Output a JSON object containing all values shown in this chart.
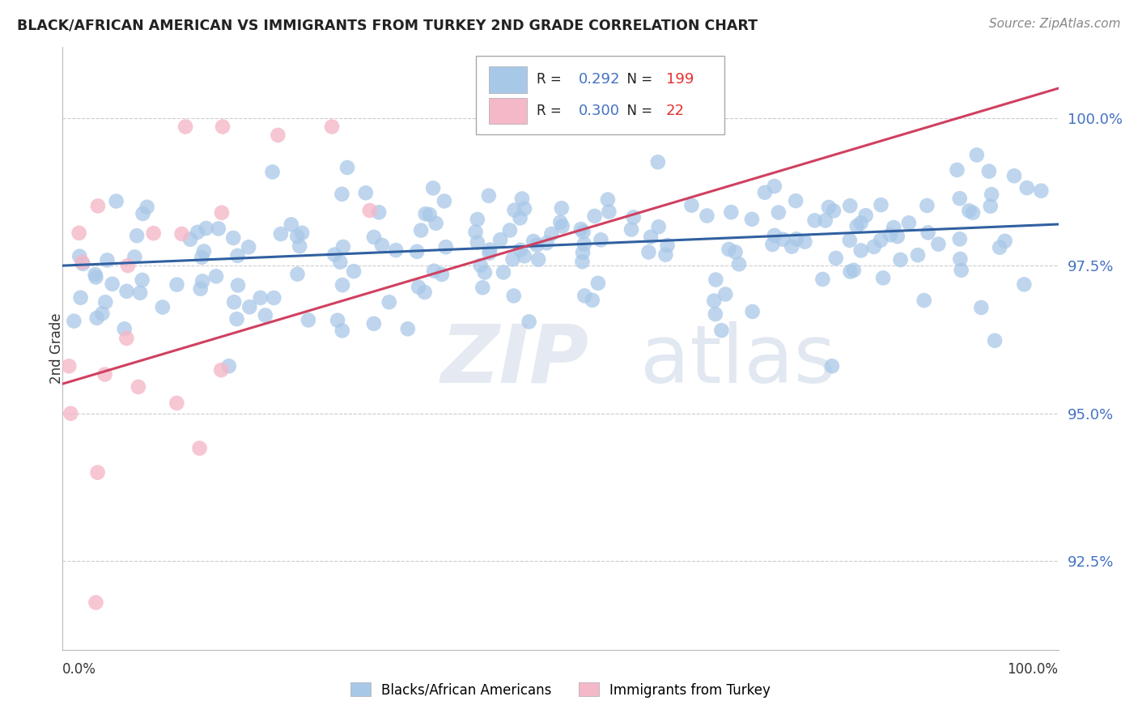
{
  "title": "BLACK/AFRICAN AMERICAN VS IMMIGRANTS FROM TURKEY 2ND GRADE CORRELATION CHART",
  "source": "Source: ZipAtlas.com",
  "ylabel": "2nd Grade",
  "ytick_labels": [
    "92.5%",
    "95.0%",
    "97.5%",
    "100.0%"
  ],
  "ytick_values": [
    0.925,
    0.95,
    0.975,
    1.0
  ],
  "ymin": 0.91,
  "ymax": 1.012,
  "xmin": 0.0,
  "xmax": 1.0,
  "legend_blue_label": "Blacks/African Americans",
  "legend_pink_label": "Immigrants from Turkey",
  "blue_R": "0.292",
  "blue_N": "199",
  "pink_R": "0.300",
  "pink_N": "22",
  "blue_color": "#a8c8e8",
  "pink_color": "#f4b8c8",
  "blue_line_color": "#3060a0",
  "pink_line_color": "#d04060",
  "watermark_zip": "ZIP",
  "watermark_atlas": "atlas",
  "blue_trend_x0": 0.0,
  "blue_trend_y0": 0.975,
  "blue_trend_x1": 1.0,
  "blue_trend_y1": 0.982,
  "pink_trend_x0": 0.0,
  "pink_trend_y0": 0.955,
  "pink_trend_x1": 1.0,
  "pink_trend_y1": 1.005
}
